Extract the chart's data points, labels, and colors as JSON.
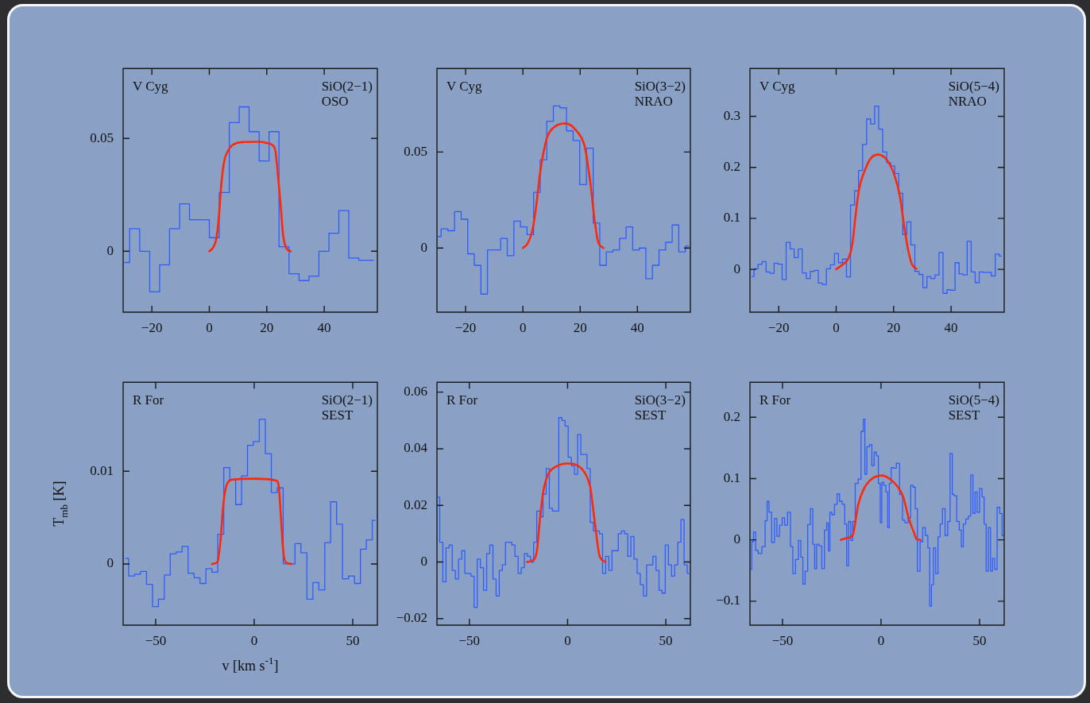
{
  "chart_data": [
    {
      "type": "step",
      "annotations": [
        "V Cyg",
        "SiO(2−1)",
        "OSO"
      ],
      "xlim": [
        -30,
        58.5
      ],
      "xticks": [
        -20,
        0,
        20,
        40
      ],
      "ylim": [
        -0.027,
        0.081
      ],
      "yticks": [
        0,
        0.05
      ],
      "legend": false,
      "marker": "none",
      "series": [
        {
          "color": "#2f5cff",
          "x": [
            -29.5,
            -26.0,
            -22.5,
            -19.0,
            -15.6,
            -12.1,
            -8.6,
            -5.2,
            -1.7,
            1.7,
            5.2,
            8.7,
            12.1,
            15.6,
            19.1,
            22.5,
            26.0,
            29.5,
            33.0,
            36.4,
            39.9,
            43.4,
            46.8,
            50.3,
            53.8,
            57.2
          ],
          "values": [
            -0.005,
            0.01,
            0.0,
            -0.018,
            -0.006,
            0.01,
            0.021,
            0.014,
            0.014,
            0.006,
            0.026,
            0.057,
            0.064,
            0.053,
            0.04,
            0.053,
            0.002,
            -0.01,
            -0.013,
            -0.011,
            0.0,
            0.008,
            0.018,
            -0.003,
            -0.004,
            -0.004
          ]
        },
        {
          "type": "line",
          "color": "#ff2a0a",
          "x": [
            0,
            1.5,
            2.5,
            3.3,
            4.2,
            5.2,
            6.5,
            8,
            12,
            17,
            20,
            22,
            23,
            23.8,
            24.8,
            25.7,
            27,
            28.3
          ],
          "values": [
            0,
            0.002,
            0.006,
            0.015,
            0.03,
            0.04,
            0.0445,
            0.047,
            0.0484,
            0.0485,
            0.048,
            0.047,
            0.0445,
            0.035,
            0.021,
            0.007,
            0.001,
            0
          ]
        }
      ]
    },
    {
      "type": "step",
      "annotations": [
        "V Cyg",
        "SiO(3−2)",
        "NRAO"
      ],
      "xlim": [
        -30,
        58.5
      ],
      "xticks": [
        -20,
        0,
        20,
        40
      ],
      "ylim": [
        -0.0334,
        0.0935
      ],
      "yticks": [
        0,
        0.05
      ],
      "legend": false,
      "marker": "none",
      "series": [
        {
          "color": "#2f5cff",
          "x": [
            -29.7,
            -27.4,
            -25.0,
            -22.7,
            -20.4,
            -18.1,
            -15.8,
            -13.5,
            -11.2,
            -8.9,
            -6.6,
            -4.3,
            -2.0,
            0.3,
            2.6,
            4.9,
            7.2,
            9.5,
            11.8,
            14.1,
            16.4,
            18.7,
            21.0,
            23.4,
            25.7,
            28.0,
            30.3,
            32.6,
            34.9,
            37.2,
            39.5,
            41.8,
            44.1,
            46.4,
            48.7,
            51.0,
            53.3,
            55.6,
            57.9
          ],
          "values": [
            0.006,
            0.01,
            0.009,
            0.019,
            0.015,
            -0.003,
            -0.009,
            -0.024,
            -0.001,
            -0.001,
            0.005,
            -0.004,
            0.014,
            0.011,
            0.007,
            0.029,
            0.046,
            0.066,
            0.074,
            0.073,
            0.061,
            0.056,
            0.033,
            0.052,
            0.013,
            -0.009,
            -0.002,
            -0.001,
            0.005,
            0.011,
            -0.001,
            0.0,
            -0.016,
            -0.009,
            -0.001,
            0.003,
            0.012,
            -0.002,
            0.001
          ]
        },
        {
          "type": "line",
          "color": "#ff2a0a",
          "x": [
            0,
            1.5,
            3.2,
            4.5,
            6,
            8.3,
            10.6,
            14.9,
            18.9,
            21.6,
            23.5,
            24.9,
            26.2,
            28.1
          ],
          "values": [
            0,
            0.002,
            0.0084,
            0.02,
            0.039,
            0.0568,
            0.0625,
            0.0649,
            0.0607,
            0.0528,
            0.0349,
            0.0163,
            0.0037,
            0
          ]
        }
      ]
    },
    {
      "type": "step",
      "annotations": [
        "V Cyg",
        "SiO(5−4)",
        "NRAO"
      ],
      "xlim": [
        -30,
        58.5
      ],
      "xticks": [
        -20,
        0,
        20,
        40
      ],
      "ylim": [
        -0.084,
        0.394
      ],
      "yticks": [
        0,
        0.1,
        0.2,
        0.3
      ],
      "legend": false,
      "marker": "none",
      "series": [
        {
          "color": "#2f5cff",
          "x": [
            -29.3,
            -27.9,
            -26.5,
            -25.1,
            -23.7,
            -22.3,
            -20.9,
            -19.5,
            -18.1,
            -16.7,
            -15.3,
            -13.9,
            -12.5,
            -11.1,
            -9.7,
            -8.3,
            -6.9,
            -5.5,
            -4.1,
            -2.7,
            -1.3,
            0.1,
            1.5,
            2.9,
            4.3,
            5.7,
            7.1,
            8.5,
            9.9,
            11.3,
            12.7,
            14.1,
            15.5,
            16.9,
            18.3,
            19.7,
            21.1,
            22.5,
            23.9,
            25.3,
            26.7,
            28.1,
            29.5,
            30.9,
            32.3,
            33.7,
            35.1,
            36.5,
            37.9,
            39.3,
            40.7,
            42.1,
            43.5,
            44.9,
            46.3,
            47.7,
            49.1,
            50.5,
            51.9,
            53.3,
            54.7,
            56.1,
            57.5
          ],
          "values": [
            -0.014,
            0.001,
            0.01,
            0.015,
            -0.005,
            -0.008,
            0.012,
            0.01,
            -0.02,
            0.053,
            0.04,
            0.023,
            0.04,
            -0.007,
            -0.018,
            -0.004,
            -0.002,
            -0.027,
            -0.03,
            0.001,
            0.009,
            0.031,
            0.013,
            0.02,
            -0.015,
            0.126,
            0.154,
            0.194,
            0.245,
            0.295,
            0.285,
            0.32,
            0.275,
            0.23,
            0.209,
            0.203,
            0.188,
            0.149,
            0.068,
            0.093,
            0.048,
            -0.004,
            -0.01,
            -0.036,
            -0.014,
            -0.018,
            -0.011,
            0.033,
            -0.047,
            -0.04,
            -0.041,
            0.013,
            -0.009,
            -0.011,
            0.055,
            -0.005,
            -0.026,
            -0.005,
            -0.006,
            -0.006,
            -0.013,
            0.03,
            0.026
          ]
        },
        {
          "type": "line",
          "color": "#ff2a0a",
          "x": [
            0,
            2.6,
            4.4,
            5.6,
            6.7,
            8,
            9.9,
            12.1,
            14.7,
            17.6,
            20.4,
            22.2,
            23.6,
            24.9,
            26.3,
            27.9
          ],
          "values": [
            0,
            0.011,
            0.023,
            0.048,
            0.103,
            0.158,
            0.193,
            0.218,
            0.225,
            0.215,
            0.183,
            0.143,
            0.088,
            0.043,
            0.011,
            0.001
          ]
        }
      ]
    },
    {
      "type": "step",
      "annotations": [
        "R For",
        "SiO(2−1)",
        "SEST"
      ],
      "xlabel": "v [km s$^{-1}$]",
      "ylabel": "T$_{mb}$ [K]",
      "xlim": [
        -66.5,
        62.5
      ],
      "xticks": [
        -50,
        0,
        50
      ],
      "ylim": [
        -0.0066,
        0.0196
      ],
      "yticks": [
        0,
        0.01
      ],
      "legend": false,
      "marker": "none",
      "series": [
        {
          "color": "#2f5cff",
          "x": [
            -65.2,
            -62.2,
            -59.2,
            -56.2,
            -53.1,
            -50.1,
            -47.1,
            -44.1,
            -41.1,
            -38.1,
            -35.1,
            -32.0,
            -29.0,
            -26.0,
            -23.0,
            -20.0,
            -17.0,
            -13.9,
            -10.9,
            -7.9,
            -4.9,
            -1.9,
            1.1,
            4.1,
            7.2,
            10.2,
            13.2,
            16.2,
            19.2,
            22.2,
            25.2,
            28.3,
            31.3,
            34.3,
            37.3,
            40.3,
            43.3,
            46.3,
            49.4,
            52.4,
            55.4,
            58.4,
            61.4
          ],
          "values": [
            0.0006,
            -0.0013,
            -0.0011,
            -0.0008,
            -0.0022,
            -0.0046,
            -0.0038,
            -0.0012,
            0.0011,
            0.0013,
            0.0019,
            -0.001,
            -0.0015,
            -0.0021,
            -0.0005,
            -0.0009,
            0.0032,
            0.0104,
            0.0091,
            0.0064,
            0.0095,
            0.0128,
            0.0132,
            0.0156,
            0.0119,
            0.0077,
            0.0082,
            0,
            0,
            0.0022,
            0.0012,
            -0.0038,
            -0.002,
            -0.0028,
            0.0023,
            0.0067,
            0.0043,
            -0.0016,
            -0.0013,
            -0.0021,
            0.0016,
            0.0026,
            0.0047
          ]
        },
        {
          "type": "line",
          "color": "#ff2a0a",
          "x": [
            -21.4,
            -18.7,
            -17.1,
            -15.8,
            -14.4,
            -11,
            0,
            11.2,
            12.5,
            13.5,
            14.6,
            15.9,
            19
          ],
          "values": [
            0,
            0.0002,
            0.0025,
            0.0061,
            0.0082,
            0.0091,
            0.0092,
            0.009,
            0.0083,
            0.0053,
            0.0017,
            0.0002,
            0
          ]
        }
      ]
    },
    {
      "type": "step",
      "annotations": [
        "R For",
        "SiO(3−2)",
        "SEST"
      ],
      "xlim": [
        -66.5,
        62.5
      ],
      "xticks": [
        -50,
        0,
        50
      ],
      "ylim": [
        -0.0223,
        0.0635
      ],
      "yticks": [
        -0.02,
        0,
        0.02,
        0.04,
        0.06
      ],
      "legend": false,
      "marker": "none",
      "series": [
        {
          "color": "#2f5cff",
          "x": [
            -65.9,
            -64.3,
            -62.7,
            -61.1,
            -59.5,
            -57.9,
            -56.3,
            -54.7,
            -53.1,
            -51.5,
            -49.9,
            -48.4,
            -46.8,
            -45.2,
            -43.6,
            -42.0,
            -40.4,
            -38.8,
            -37.2,
            -35.6,
            -34.0,
            -32.4,
            -30.8,
            -29.2,
            -27.6,
            -26.0,
            -24.4,
            -22.8,
            -21.2,
            -19.6,
            -18.1,
            -16.5,
            -14.9,
            -13.3,
            -11.7,
            -10.1,
            -8.5,
            -6.9,
            -5.3,
            -3.7,
            -2.1,
            -0.5,
            1.1,
            2.7,
            4.3,
            5.9,
            7.5,
            9.1,
            10.7,
            12.3,
            13.9,
            15.4,
            17.0,
            18.6,
            20.2,
            21.8,
            23.4,
            25.0,
            26.6,
            28.2,
            29.8,
            31.4,
            33.0,
            34.6,
            36.2,
            37.8,
            39.4,
            41.0,
            42.6,
            44.2,
            45.8,
            47.3,
            48.9,
            50.5,
            52.1,
            53.7,
            55.3,
            56.9,
            58.5,
            60.1,
            61.7
          ],
          "values": [
            0.023,
            0.007,
            -0.007,
            0.005,
            0.006,
            -0.003,
            -0.006,
            0.001,
            0.004,
            -0.004,
            -0.004,
            -0.005,
            -0.016,
            0.001,
            -0.002,
            -0.01,
            0.003,
            0.006,
            -0.006,
            -0.012,
            -0.003,
            -0.001,
            0.007,
            0.007,
            0.006,
            0.002,
            -0.004,
            -0.002,
            0.003,
            0.002,
            0.0,
            0.007,
            0.018,
            0.016,
            0.024,
            0.033,
            0.019,
            0.018,
            0.018,
            0.051,
            0.05,
            0.048,
            0.037,
            0.034,
            0.031,
            0.045,
            0.038,
            0.038,
            0.033,
            0.014,
            0.011,
            0.011,
            0.01,
            -0.004,
            0.002,
            -0.003,
            0.004,
            0.004,
            0.01,
            0.011,
            0.01,
            0.002,
            0.009,
            0.001,
            -0.004,
            -0.008,
            -0.012,
            -0.001,
            -0.001,
            0.002,
            -0.003,
            -0.01,
            -0.011,
            0.006,
            -0.001,
            -0.005,
            -0.001,
            0.007,
            0.015,
            -0.001,
            -0.004
          ]
        },
        {
          "type": "line",
          "color": "#ff2a0a",
          "x": [
            -20.7,
            -18,
            -15.6,
            -14,
            -12.3,
            -9.9,
            -5.9,
            0,
            4.8,
            9.5,
            11.5,
            12.9,
            14.5,
            16.2,
            19.3
          ],
          "values": [
            0,
            0.0005,
            0.0041,
            0.0158,
            0.0252,
            0.031,
            0.0337,
            0.0348,
            0.0342,
            0.0306,
            0.0265,
            0.0194,
            0.0104,
            0.0023,
            0
          ]
        }
      ]
    },
    {
      "type": "step",
      "annotations": [
        "R For",
        "SiO(5−4)",
        "SEST"
      ],
      "xlim": [
        -66.5,
        62.5
      ],
      "xticks": [
        -50,
        0,
        50
      ],
      "ylim": [
        -0.139,
        0.257
      ],
      "yticks": [
        -0.1,
        0,
        0.1,
        0.2
      ],
      "legend": false,
      "marker": "none",
      "series": [
        {
          "color": "#2f5cff",
          "x": [
            -66.0,
            -65.2,
            -64.2,
            -63.1,
            -61.5,
            -59.4,
            -58.2,
            -57.4,
            -56.3,
            -54.7,
            -53.4,
            -52.3,
            -50.7,
            -49.6,
            -48.2,
            -46.6,
            -45.3,
            -44.2,
            -42.6,
            -41.2,
            -40.2,
            -39.1,
            -37.9,
            -36.5,
            -35.2,
            -34.1,
            -33.2,
            -32.1,
            -30.7,
            -29.4,
            -28.0,
            -27.1,
            -26.4,
            -25.5,
            -24.4,
            -22.8,
            -21.7,
            -20.4,
            -19.0,
            -17.9,
            -17.0,
            -15.9,
            -14.8,
            -13.9,
            -12.3,
            -10.9,
            -9.4,
            -8.6,
            -7.8,
            -6.6,
            -5.1,
            -4.2,
            -2.8,
            -1.9,
            -0.8,
            0,
            0.8,
            1.9,
            3.0,
            3.8,
            4.6,
            5.7,
            7.0,
            8.6,
            10.2,
            11.6,
            12.7,
            14.7,
            15.4,
            17.0,
            17.8,
            19.1,
            20.5,
            21.8,
            23.2,
            24.3,
            25.1,
            26.1,
            27.2,
            28.3,
            29.5,
            30.5,
            31.8,
            33.2,
            34.5,
            35.6,
            36.7,
            37.7,
            39.1,
            40.3,
            41.2,
            42.3,
            43.7,
            45.0,
            46.1,
            47.2,
            48.2,
            49.3,
            50.7,
            51.8,
            52.8,
            53.9,
            55.0,
            56.1,
            57.1,
            58.2,
            59.6,
            60.9,
            62.0
          ],
          "values": [
            -0.048,
            -0.003,
            0.013,
            -0.017,
            -0.022,
            -0.011,
            0.031,
            0.063,
            0.045,
            -0.004,
            0.035,
            0.006,
            0.024,
            0.036,
            0.024,
            0.045,
            -0.011,
            -0.055,
            -0.032,
            -0.001,
            -0.028,
            -0.072,
            -0.051,
            0.025,
            0.051,
            -0.007,
            -0.047,
            -0.007,
            -0.01,
            -0.047,
            0.016,
            0.028,
            -0.018,
            0.045,
            0.041,
            0.058,
            0.075,
            0.063,
            0.058,
            0.026,
            -0.042,
            0.03,
            -0.001,
            0.03,
            0.092,
            0.099,
            0.177,
            0.197,
            0.107,
            0.152,
            0.155,
            0.121,
            0.143,
            0.137,
            0.092,
            0.028,
            0.094,
            0.089,
            0.078,
            0.02,
            0.092,
            0.118,
            0.117,
            0.125,
            0.074,
            0.032,
            0.028,
            0.036,
            0.089,
            0.086,
            0.051,
            -0.051,
            -0.003,
            0.02,
            0.007,
            -0.013,
            -0.108,
            -0.073,
            -0.013,
            -0.055,
            0.005,
            0.026,
            0.051,
            0.007,
            0.03,
            0.141,
            0.074,
            0.072,
            0.03,
            0.016,
            -0.011,
            0.026,
            0.034,
            0.039,
            0.106,
            0.043,
            0.078,
            0.045,
            0.084,
            0.07,
            0.026,
            -0.051,
            0.02,
            -0.051,
            -0.03,
            -0.048,
            0.053,
            0.043,
            0.007
          ]
        },
        {
          "type": "line",
          "color": "#ff2a0a",
          "x": [
            -20.4,
            -17,
            -14.3,
            -12.9,
            -11.6,
            -8.9,
            -4.9,
            0.5,
            4.6,
            8.6,
            11.3,
            14,
            16.7,
            18.1,
            20.1
          ],
          "values": [
            0,
            0.003,
            0.008,
            0.032,
            0.057,
            0.082,
            0.099,
            0.105,
            0.099,
            0.086,
            0.07,
            0.036,
            0.012,
            0.001,
            0
          ]
        }
      ]
    }
  ]
}
